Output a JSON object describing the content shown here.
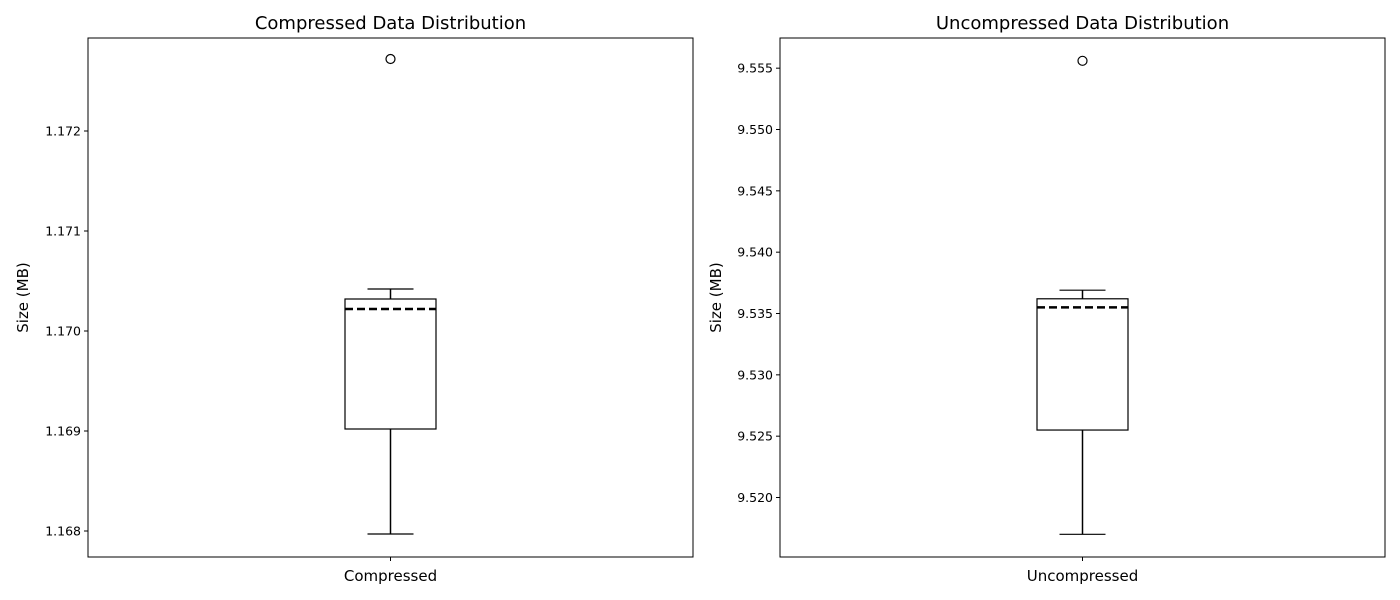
{
  "chart_data": [
    {
      "type": "box",
      "title": "Compressed Data Distribution",
      "xlabel": "",
      "ylabel": "Size (MB)",
      "categories": [
        "Compressed"
      ],
      "ylim": [
        1.16774,
        1.17293
      ],
      "yticks": [
        1.168,
        1.169,
        1.17,
        1.171,
        1.172
      ],
      "ytick_labels": [
        "1.168",
        "1.169",
        "1.170",
        "1.171",
        "1.172"
      ],
      "grid": false,
      "box": {
        "whisker_low": 1.16797,
        "q1": 1.16902,
        "median": 1.17022,
        "q3": 1.17032,
        "whisker_high": 1.17042,
        "outliers": [
          1.17272
        ]
      }
    },
    {
      "type": "box",
      "title": "Uncompressed Data Distribution",
      "xlabel": "",
      "ylabel": "Size (MB)",
      "categories": [
        "Uncompressed"
      ],
      "ylim": [
        9.51515,
        9.55746
      ],
      "yticks": [
        9.52,
        9.525,
        9.53,
        9.535,
        9.54,
        9.545,
        9.55,
        9.555
      ],
      "ytick_labels": [
        "9.520",
        "9.525",
        "9.530",
        "9.535",
        "9.540",
        "9.545",
        "9.550",
        "9.555"
      ],
      "grid": false,
      "box": {
        "whisker_low": 9.517,
        "q1": 9.5255,
        "median": 9.5355,
        "q3": 9.5362,
        "whisker_high": 9.5369,
        "outliers": [
          9.5556
        ]
      }
    }
  ],
  "colors": {
    "line": "#000000",
    "background": "#ffffff"
  }
}
